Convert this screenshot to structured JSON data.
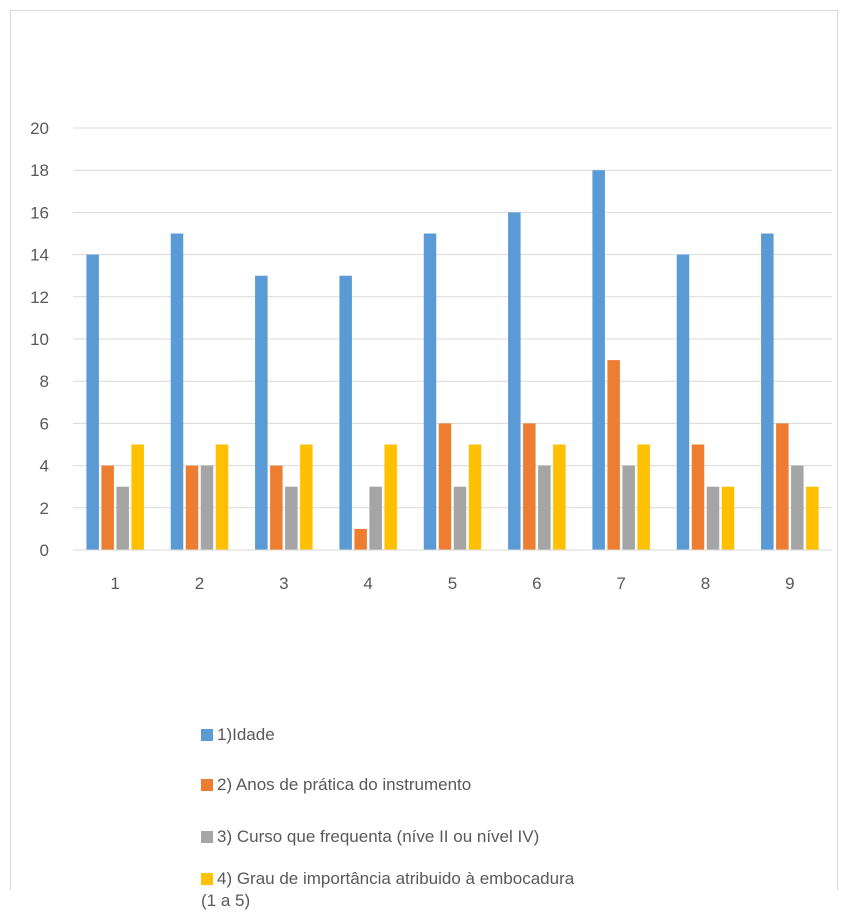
{
  "chart_data": {
    "type": "bar",
    "categories": [
      "1",
      "2",
      "3",
      "4",
      "5",
      "6",
      "7",
      "8",
      "9"
    ],
    "series": [
      {
        "name": "1)Idade",
        "color": "#5b9bd5",
        "values": [
          14,
          15,
          13,
          13,
          15,
          16,
          18,
          14,
          15
        ]
      },
      {
        "name": "2) Anos de prática do instrumento",
        "color": "#ed7d31",
        "values": [
          4,
          4,
          4,
          1,
          6,
          6,
          9,
          5,
          6
        ]
      },
      {
        "name": "3) Curso que frequenta (níve II ou nível IV)",
        "color": "#a5a5a5",
        "values": [
          3,
          4,
          3,
          3,
          3,
          4,
          4,
          3,
          4
        ]
      },
      {
        "name": "4) Grau de importância atribuido à embocadura (1 a 5)",
        "color": "#ffc000",
        "values": [
          5,
          5,
          5,
          5,
          5,
          5,
          5,
          3,
          3
        ]
      }
    ],
    "ylim": [
      0,
      20
    ],
    "yticks": [
      "0",
      "2",
      "4",
      "6",
      "8",
      "10",
      "12",
      "14",
      "16",
      "18",
      "20"
    ],
    "grid": true,
    "legend_position": "bottom"
  }
}
